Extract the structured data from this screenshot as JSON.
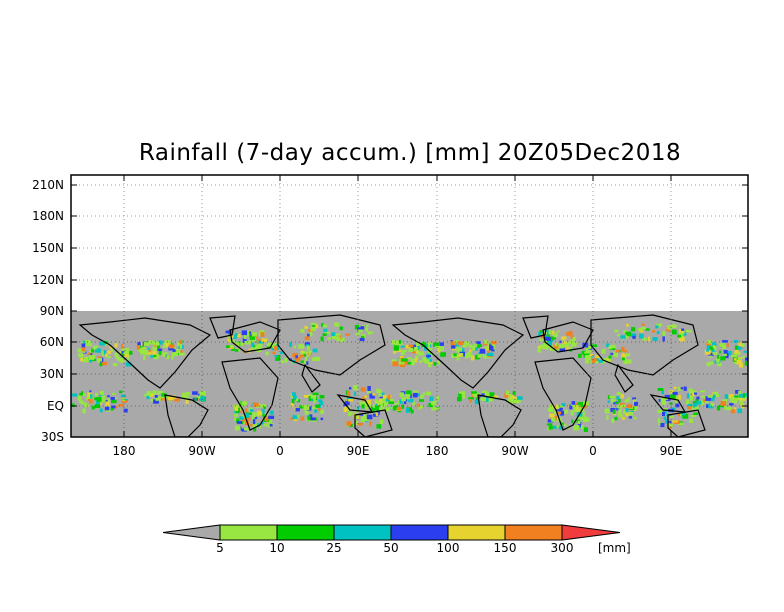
{
  "title": "Rainfall (7-day accum.) [mm] 20Z05Dec2018",
  "map": {
    "lat_labels": [
      "210N",
      "180N",
      "150N",
      "120N",
      "90N",
      "60N",
      "30N",
      "EQ",
      "30S"
    ],
    "lon_labels": [
      "180",
      "90W",
      "0",
      "90E",
      "180",
      "90W",
      "0",
      "90E"
    ],
    "no_data_color": "#a9a9a9",
    "grid": "dotted",
    "coastlines": true,
    "country_borders": true
  },
  "legend": {
    "unit": "[mm]",
    "ticks": [
      "5",
      "10",
      "25",
      "50",
      "100",
      "150",
      "300"
    ],
    "colors": [
      "#a9a9a9",
      "#97e641",
      "#00cc00",
      "#00c2c2",
      "#2b3ff0",
      "#e6d330",
      "#f08020",
      "#f03c3c"
    ]
  }
}
